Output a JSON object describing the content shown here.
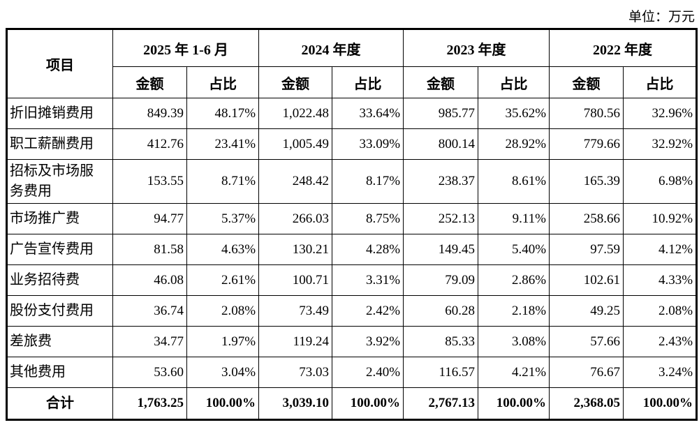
{
  "page": {
    "unit_label": "单位：万元"
  },
  "table": {
    "item_header": "项目",
    "sub_headers": {
      "amount": "金额",
      "ratio": "占比"
    },
    "periods": [
      "2025 年 1-6 月",
      "2024 年度",
      "2023 年度",
      "2022 年度"
    ],
    "rows": [
      {
        "label": "折旧摊销费用",
        "values": [
          "849.39",
          "48.17%",
          "1,022.48",
          "33.64%",
          "985.77",
          "35.62%",
          "780.56",
          "32.96%"
        ]
      },
      {
        "label": "职工薪酬费用",
        "values": [
          "412.76",
          "23.41%",
          "1,005.49",
          "33.09%",
          "800.14",
          "28.92%",
          "779.66",
          "32.92%"
        ]
      },
      {
        "label": "招标及市场服务费用",
        "values": [
          "153.55",
          "8.71%",
          "248.42",
          "8.17%",
          "238.37",
          "8.61%",
          "165.39",
          "6.98%"
        ]
      },
      {
        "label": "市场推广费",
        "values": [
          "94.77",
          "5.37%",
          "266.03",
          "8.75%",
          "252.13",
          "9.11%",
          "258.66",
          "10.92%"
        ]
      },
      {
        "label": "广告宣传费用",
        "values": [
          "81.58",
          "4.63%",
          "130.21",
          "4.28%",
          "149.45",
          "5.40%",
          "97.59",
          "4.12%"
        ]
      },
      {
        "label": "业务招待费",
        "values": [
          "46.08",
          "2.61%",
          "100.71",
          "3.31%",
          "79.09",
          "2.86%",
          "102.61",
          "4.33%"
        ]
      },
      {
        "label": "股份支付费用",
        "values": [
          "36.74",
          "2.08%",
          "73.49",
          "2.42%",
          "60.28",
          "2.18%",
          "49.25",
          "2.08%"
        ]
      },
      {
        "label": "差旅费",
        "values": [
          "34.77",
          "1.97%",
          "119.24",
          "3.92%",
          "85.33",
          "3.08%",
          "57.66",
          "2.43%"
        ]
      },
      {
        "label": "其他费用",
        "values": [
          "53.60",
          "3.04%",
          "73.03",
          "2.40%",
          "116.57",
          "4.21%",
          "76.67",
          "3.24%"
        ]
      }
    ],
    "total": {
      "label": "合计",
      "values": [
        "1,763.25",
        "100.00%",
        "3,039.10",
        "100.00%",
        "2,767.13",
        "100.00%",
        "2,368.05",
        "100.00%"
      ]
    }
  },
  "colors": {
    "text": "#000000",
    "border": "#000000",
    "background": "#ffffff"
  }
}
